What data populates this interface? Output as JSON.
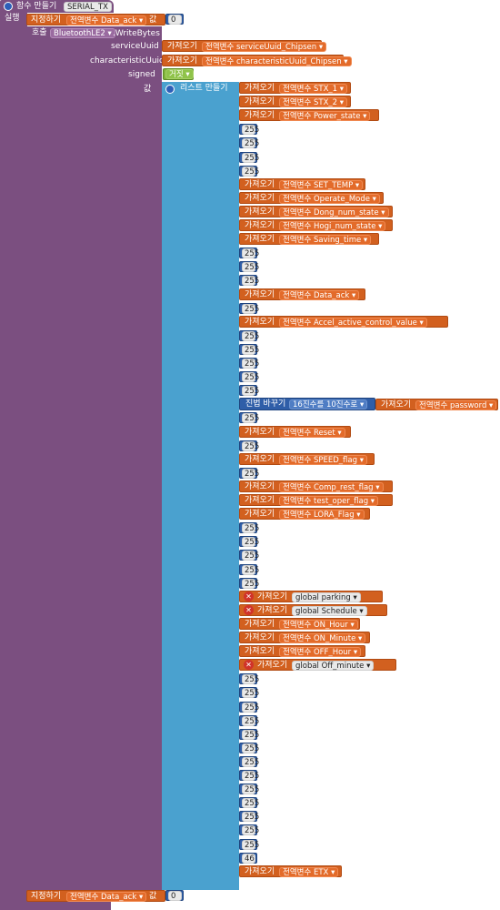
{
  "procedure": {
    "header_label": "함수 만들기",
    "name": "SERIAL_TX",
    "do_label": "실행"
  },
  "set_top": {
    "label": "지정하기",
    "var": "전역변수 Data_ack ▾",
    "to": "값",
    "value": "0"
  },
  "call": {
    "label": "호출",
    "component": "BluetoothLE2 ▾",
    "method": ".WriteBytes",
    "params": {
      "serviceUuid": {
        "name": "serviceUuid",
        "get_label": "가져오기",
        "var": "전역변수 serviceUuid_Chipsen ▾"
      },
      "characteristicUuid": {
        "name": "characteristicUuid",
        "get_label": "가져오기",
        "var": "전역변수 characteristicUuid_Chipsen ▾"
      },
      "signed": {
        "name": "signed",
        "value": "거짓 ▾"
      },
      "values": {
        "name": "값"
      }
    }
  },
  "list": {
    "label": "리스트 만들기",
    "items": [
      {
        "kind": "get",
        "label": "가져오기",
        "var": "전역변수 STX_1 ▾"
      },
      {
        "kind": "get",
        "label": "가져오기",
        "var": "전역변수 STX_2 ▾"
      },
      {
        "kind": "get",
        "label": "가져오기",
        "var": "전역변수 Power_state ▾"
      },
      {
        "kind": "num",
        "value": "255"
      },
      {
        "kind": "num",
        "value": "255"
      },
      {
        "kind": "num",
        "value": "255"
      },
      {
        "kind": "num",
        "value": "255"
      },
      {
        "kind": "get",
        "label": "가져오기",
        "var": "전역변수 SET_TEMP ▾"
      },
      {
        "kind": "get",
        "label": "가져오기",
        "var": "전역변수 Operate_Mode ▾"
      },
      {
        "kind": "get",
        "label": "가져오기",
        "var": "전역변수 Dong_num_state ▾"
      },
      {
        "kind": "get",
        "label": "가져오기",
        "var": "전역변수 Hogi_num_state ▾"
      },
      {
        "kind": "get",
        "label": "가져오기",
        "var": "전역변수 Saving_time ▾"
      },
      {
        "kind": "num",
        "value": "255"
      },
      {
        "kind": "num",
        "value": "255"
      },
      {
        "kind": "num",
        "value": "255"
      },
      {
        "kind": "get",
        "label": "가져오기",
        "var": "전역변수 Data_ack ▾"
      },
      {
        "kind": "num",
        "value": "255"
      },
      {
        "kind": "get",
        "label": "가져오기",
        "var": "전역변수 Accel_active_control_value ▾"
      },
      {
        "kind": "num",
        "value": "255"
      },
      {
        "kind": "num",
        "value": "255"
      },
      {
        "kind": "num",
        "value": "255"
      },
      {
        "kind": "num",
        "value": "255"
      },
      {
        "kind": "num",
        "value": "255"
      },
      {
        "kind": "convert",
        "label": "진법 바꾸기",
        "mode": "16진수를 10진수로 ▾",
        "get_label": "가져오기",
        "var": "전역변수 password ▾"
      },
      {
        "kind": "num",
        "value": "255"
      },
      {
        "kind": "get",
        "label": "가져오기",
        "var": "전역변수 Reset ▾"
      },
      {
        "kind": "num",
        "value": "255"
      },
      {
        "kind": "get",
        "label": "가져오기",
        "var": "전역변수 SPEED_flag ▾"
      },
      {
        "kind": "num",
        "value": "255"
      },
      {
        "kind": "get",
        "label": "가져오기",
        "var": "전역변수 Comp_rest_flag ▾"
      },
      {
        "kind": "get",
        "label": "가져오기",
        "var": "전역변수 test_oper_flag ▾"
      },
      {
        "kind": "get",
        "label": "가져오기",
        "var": "전역변수 LORA_Flag ▾"
      },
      {
        "kind": "num",
        "value": "255"
      },
      {
        "kind": "num",
        "value": "255"
      },
      {
        "kind": "num",
        "value": "255"
      },
      {
        "kind": "num",
        "value": "255"
      },
      {
        "kind": "num",
        "value": "255"
      },
      {
        "kind": "err",
        "label": "가져오기",
        "var": "global parking ▾"
      },
      {
        "kind": "err",
        "label": "가져오기",
        "var": "global Schedule ▾"
      },
      {
        "kind": "get",
        "label": "가져오기",
        "var": "전역변수 ON_Hour ▾"
      },
      {
        "kind": "get",
        "label": "가져오기",
        "var": "전역변수 ON_Minute ▾"
      },
      {
        "kind": "get",
        "label": "가져오기",
        "var": "전역변수 OFF_Hour ▾"
      },
      {
        "kind": "err",
        "label": "가져오기",
        "var": "global Off_minute ▾"
      },
      {
        "kind": "num",
        "value": "255"
      },
      {
        "kind": "num",
        "value": "255"
      },
      {
        "kind": "num",
        "value": "255"
      },
      {
        "kind": "num",
        "value": "255"
      },
      {
        "kind": "num",
        "value": "255"
      },
      {
        "kind": "num",
        "value": "255"
      },
      {
        "kind": "num",
        "value": "255"
      },
      {
        "kind": "num",
        "value": "255"
      },
      {
        "kind": "num",
        "value": "255"
      },
      {
        "kind": "num",
        "value": "255"
      },
      {
        "kind": "num",
        "value": "255"
      },
      {
        "kind": "num",
        "value": "255"
      },
      {
        "kind": "num",
        "value": "255"
      },
      {
        "kind": "num",
        "value": "46"
      },
      {
        "kind": "get",
        "label": "가져오기",
        "var": "전역변수 ETX ▾"
      }
    ]
  },
  "set_bottom": {
    "label": "지정하기",
    "var": "전역변수 Data_ack ▾",
    "to": "값",
    "value": "0"
  },
  "colors": {
    "procedure": "#7b4f80",
    "variable": "#d2601f",
    "math": "#2f5ea8",
    "list": "#4aa1cf",
    "logic": "#7fb33a",
    "error": "#d0332a"
  }
}
